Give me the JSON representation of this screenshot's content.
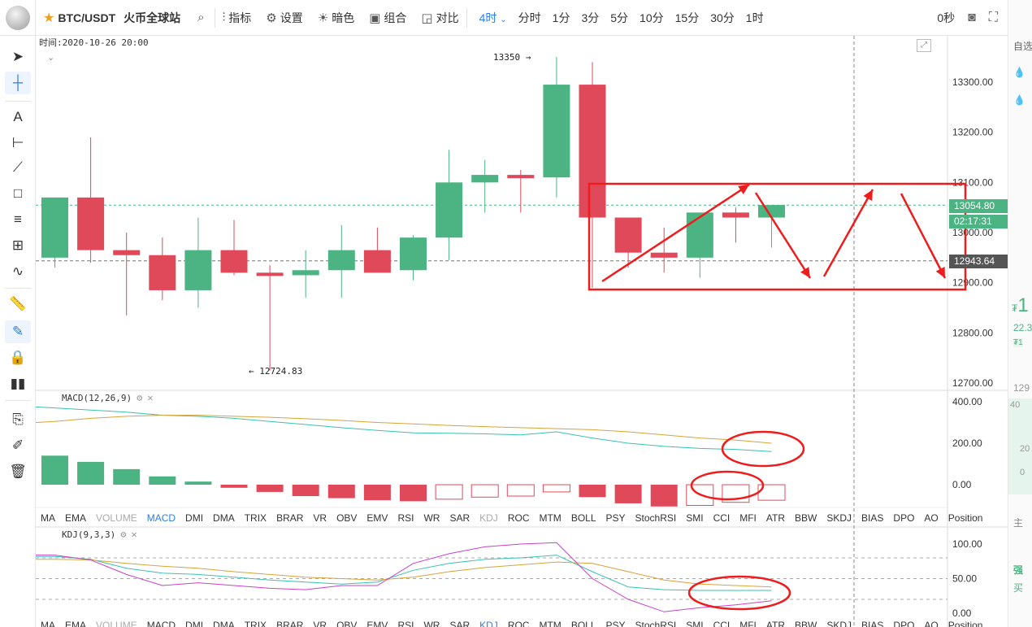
{
  "toolbar": {
    "symbol": "BTC/USDT",
    "exchange": "火币全球站",
    "indicators_label": "指标",
    "settings_label": "设置",
    "theme_label": "暗色",
    "combo_label": "组合",
    "compare_label": "对比",
    "active_interval": "4时",
    "timeframes": [
      "分时",
      "1分",
      "3分",
      "5分",
      "10分",
      "15分",
      "30分",
      "1时"
    ],
    "countdown": "0秒"
  },
  "chart": {
    "time_label": "时间:2020-10-26 20:00",
    "high_annotation": "13350",
    "low_annotation": "12724.83",
    "price_axis": [
      "13300.00",
      "13200.00",
      "13100.00",
      "13000.00",
      "12900.00",
      "12800.00",
      "12700.00"
    ],
    "current_price": "13054.80",
    "countdown": "02:17:31",
    "crosshair_price": "12943.64",
    "up_color": "#4cb382",
    "down_color": "#e0495a"
  },
  "macd": {
    "title": "MACD(12,26,9)",
    "axis": [
      "400.00",
      "200.00",
      "0.00"
    ]
  },
  "kdj": {
    "title": "KDJ(9,3,3)",
    "axis": [
      "100.00",
      "50.00",
      "0.00"
    ]
  },
  "indicator_tabs": [
    "MA",
    "EMA",
    "VOLUME",
    "MACD",
    "DMI",
    "DMA",
    "TRIX",
    "BRAR",
    "VR",
    "OBV",
    "EMV",
    "RSI",
    "WR",
    "SAR",
    "KDJ",
    "ROC",
    "MTM",
    "BOLL",
    "PSY",
    "StochRSI",
    "SMI",
    "CCI",
    "MFI",
    "ATR",
    "BBW",
    "SKDJ",
    "BIAS",
    "DPO",
    "AO",
    "Position"
  ],
  "right_panel": {
    "watchlist": "自选",
    "price_big": "1",
    "currency": "₮",
    "change": "22.3",
    "tag": "₮1",
    "value_129": "129",
    "depth_40": "40",
    "depth_20": "20",
    "depth_0": "0",
    "main": "主",
    "strong": "强",
    "buy": "买"
  }
}
